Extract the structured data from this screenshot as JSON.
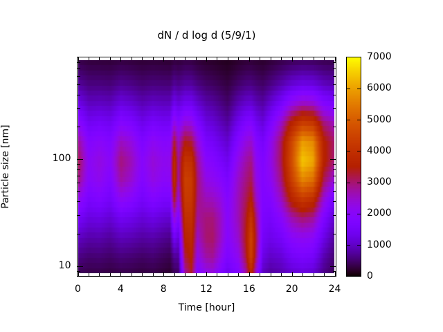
{
  "title": "dN / d log d (5/9/1)",
  "x_axis": {
    "label": "Time [hour]",
    "min": 0,
    "max": 24,
    "major_ticks": [
      0,
      4,
      8,
      12,
      16,
      20,
      24
    ],
    "minor_step": 1
  },
  "y_axis": {
    "label": "Particle size [nm]",
    "scale": "log",
    "min": 8,
    "max": 900,
    "major_ticks": [
      10,
      100
    ],
    "minor_ticks": [
      9,
      20,
      30,
      40,
      50,
      60,
      70,
      80,
      90,
      200,
      300,
      400,
      500,
      600,
      700,
      800
    ]
  },
  "colorbar": {
    "min": 0,
    "max": 7000,
    "tick_step": 1000,
    "tick_labels": [
      "0",
      "1000",
      "2000",
      "3000",
      "4000",
      "5000",
      "6000",
      "7000"
    ],
    "palette": "gnuplot-rgbformulae-7-5-15",
    "palette_stops_hex": [
      "#000000",
      "#6001c7",
      "#8806f9",
      "#a81378",
      "#b42000",
      "#d35c00",
      "#eca100",
      "#ffff00"
    ]
  },
  "chart_data": {
    "type": "heatmap",
    "title": "dN / d log d (5/9/1)",
    "xlabel": "Time [hour]",
    "ylabel": "Particle size [nm]",
    "x_range": [
      0,
      24
    ],
    "y_range_log": [
      8,
      900
    ],
    "zlim": [
      0,
      7000
    ],
    "legend_position": "right-colorbar",
    "grid": false,
    "image_size_range": [
      8.5,
      847
    ],
    "size_bins": 42,
    "hours": [
      0,
      1,
      2,
      3,
      4,
      5,
      6,
      7,
      8,
      8.6,
      9,
      9.4,
      10,
      10.6,
      11.2,
      12,
      12.6,
      13.3,
      14,
      15,
      15.7,
      16.2,
      16.7,
      17.3,
      18,
      19,
      20,
      21,
      22,
      23,
      24
    ],
    "sizes": [
      8,
      12,
      18,
      28,
      42,
      63,
      95,
      145,
      219,
      331,
      501,
      759,
      960
    ],
    "values": [
      [
        350,
        600,
        950,
        1500,
        2200,
        2900,
        3200,
        2800,
        2000,
        1300,
        750,
        400,
        250
      ],
      [
        300,
        500,
        800,
        1200,
        1600,
        1950,
        2050,
        1850,
        1400,
        950,
        580,
        320,
        200
      ],
      [
        300,
        520,
        820,
        1250,
        1750,
        2150,
        2300,
        2000,
        1500,
        980,
        580,
        310,
        190
      ],
      [
        260,
        460,
        720,
        1100,
        1500,
        1800,
        2000,
        1800,
        1380,
        930,
        550,
        300,
        185
      ],
      [
        300,
        550,
        900,
        1400,
        2100,
        2700,
        2950,
        2550,
        1850,
        1200,
        680,
        350,
        200
      ],
      [
        290,
        510,
        850,
        1300,
        1900,
        2400,
        2600,
        2300,
        1680,
        1080,
        620,
        320,
        190
      ],
      [
        250,
        450,
        750,
        1120,
        1520,
        1820,
        1950,
        1720,
        1300,
        880,
        520,
        280,
        170
      ],
      [
        280,
        500,
        800,
        1250,
        1800,
        2250,
        2400,
        2100,
        1550,
        1000,
        570,
        300,
        180
      ],
      [
        220,
        400,
        680,
        1100,
        1600,
        2000,
        2150,
        1900,
        1420,
        940,
        550,
        280,
        170
      ],
      [
        180,
        350,
        620,
        1050,
        1600,
        2050,
        2200,
        1950,
        1450,
        950,
        540,
        270,
        160
      ],
      [
        350,
        700,
        1400,
        2400,
        3400,
        3950,
        3900,
        3300,
        2250,
        1350,
        720,
        350,
        200
      ],
      [
        400,
        700,
        1100,
        1700,
        2300,
        2700,
        2800,
        2500,
        1850,
        1150,
        640,
        320,
        190
      ],
      [
        2600,
        3200,
        3600,
        3950,
        4250,
        4400,
        4100,
        3400,
        2350,
        1400,
        760,
        380,
        220
      ],
      [
        3300,
        3600,
        3800,
        4000,
        4200,
        4300,
        4000,
        3250,
        2250,
        1380,
        750,
        370,
        210
      ],
      [
        1700,
        2200,
        2500,
        2750,
        2900,
        2950,
        2800,
        2350,
        1700,
        1080,
        600,
        300,
        180
      ],
      [
        2100,
        2700,
        3000,
        2950,
        2600,
        2250,
        1950,
        1600,
        1200,
        820,
        470,
        240,
        140
      ],
      [
        2200,
        2800,
        3050,
        2950,
        2550,
        2150,
        1850,
        1500,
        1120,
        760,
        430,
        220,
        130
      ],
      [
        1700,
        2250,
        2550,
        2550,
        2300,
        1950,
        1600,
        1250,
        920,
        620,
        360,
        185,
        110
      ],
      [
        1300,
        1700,
        1900,
        1950,
        1850,
        1650,
        1350,
        1050,
        750,
        480,
        290,
        155,
        100
      ],
      [
        1700,
        2150,
        2450,
        2600,
        2600,
        2500,
        2250,
        1850,
        1350,
        870,
        480,
        240,
        145
      ],
      [
        2600,
        3200,
        3400,
        3300,
        3100,
        2900,
        2700,
        2300,
        1700,
        1060,
        580,
        290,
        175
      ],
      [
        3700,
        4450,
        4500,
        4150,
        3550,
        3150,
        2900,
        2450,
        1800,
        1100,
        600,
        300,
        180
      ],
      [
        2200,
        2900,
        3100,
        2900,
        2500,
        2250,
        2100,
        1850,
        1400,
        900,
        520,
        265,
        160
      ],
      [
        900,
        1250,
        1500,
        1650,
        1750,
        1800,
        1750,
        1550,
        1150,
        780,
        460,
        235,
        145
      ],
      [
        700,
        1000,
        1300,
        1550,
        1800,
        2050,
        2200,
        2100,
        1650,
        1080,
        600,
        300,
        180
      ],
      [
        800,
        1100,
        1500,
        1950,
        2500,
        2900,
        3100,
        3050,
        2450,
        1550,
        830,
        400,
        230
      ],
      [
        1000,
        1450,
        1950,
        2650,
        3650,
        4350,
        4700,
        4550,
        3600,
        2200,
        1100,
        500,
        280
      ],
      [
        1100,
        1600,
        2100,
        3000,
        4250,
        5600,
        6450,
        5950,
        4300,
        2550,
        1250,
        550,
        300
      ],
      [
        1000,
        1500,
        2000,
        2800,
        3950,
        5250,
        6100,
        5700,
        4150,
        2450,
        1200,
        530,
        290
      ],
      [
        600,
        850,
        1250,
        1750,
        2400,
        3100,
        3650,
        3600,
        2950,
        1850,
        950,
        450,
        250
      ],
      [
        350,
        500,
        700,
        1000,
        1450,
        2350,
        2950,
        3000,
        2550,
        1600,
        850,
        420,
        240
      ]
    ]
  }
}
